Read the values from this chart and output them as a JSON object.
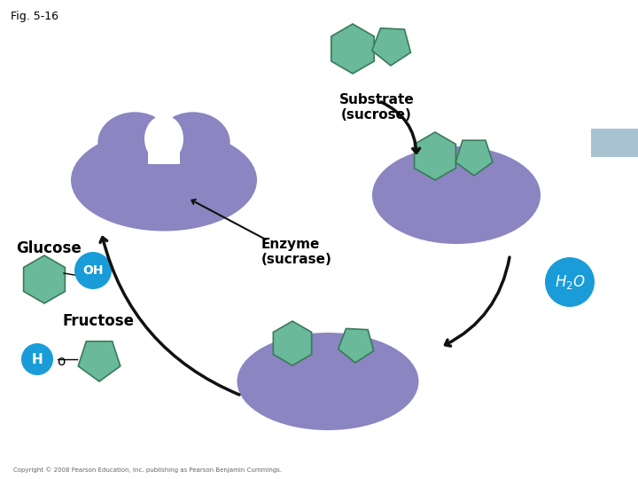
{
  "bg_color": "#ffffff",
  "enzyme_color": "#8b85c1",
  "enzyme_color2": "#9590c8",
  "substrate_color": "#6ab99a",
  "substrate_edge": "#3a7a5a",
  "circle_color": "#1a9cd8",
  "arrow_color": "#111111",
  "highlight_color": "#8baec4",
  "label_substrate": "Substrate\n(sucrose)",
  "label_enzyme": "Enzyme\n(sucrase)",
  "label_glucose": "Glucose",
  "label_fructose": "Fructose",
  "label_oh": "OH",
  "label_h2o": "H$_2$O",
  "label_ho": "H",
  "label_o": "o",
  "label_fig": "Fig. 5-16",
  "copyright": "Copyright © 2008 Pearson Education, Inc. publishing as Pearson Benjamin Cummings."
}
